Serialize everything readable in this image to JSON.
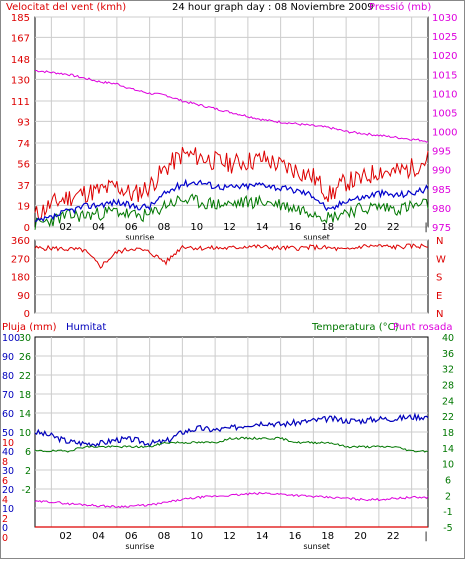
{
  "header": {
    "left_title": "Velocitat del vent (kmh)",
    "center_title": "24 hour graph day : 08 Noviembre 2009",
    "right_title": "Pressió (mb)"
  },
  "colors": {
    "wind_avg": "#0000cc",
    "wind_gust": "#dd0000",
    "wind_other": "#007700",
    "pressure": "#dd00dd",
    "direction": "#dd0000",
    "humidity": "#0000bb",
    "temperature": "#007700",
    "dewpoint": "#dd00dd",
    "rain": "#dd0000",
    "grid": "#cccccc",
    "frame": "#000000"
  },
  "time_axis": {
    "ticks": [
      "02",
      "04",
      "06",
      "08",
      "10",
      "12",
      "14",
      "16",
      "18",
      "20",
      "22",
      "|"
    ],
    "sunrise_label": "sunrise",
    "sunset_label": "sunset"
  },
  "chart_data": [
    {
      "type": "line",
      "title": "24 hour graph day : 08 Noviembre 2009",
      "ylabel_left": "Velocitat del vent (kmh)",
      "ylabel_right": "Pressió (mb)",
      "y_left_ticks": [
        "185",
        "167",
        "148",
        "130",
        "111",
        "93",
        "74",
        "56",
        "37",
        "19",
        "0"
      ],
      "y_right_ticks": [
        "1030",
        "1025",
        "1020",
        "1015",
        "1010",
        "1005",
        "1000",
        "995",
        "990",
        "985",
        "980",
        "975"
      ],
      "ylim_left": [
        0,
        185
      ],
      "ylim_right": [
        975,
        1030
      ],
      "x_hours": [
        0,
        1,
        2,
        3,
        4,
        5,
        6,
        7,
        8,
        9,
        10,
        11,
        12,
        13,
        14,
        15,
        16,
        17,
        18,
        19,
        20,
        21,
        22,
        23,
        24
      ],
      "series": [
        {
          "values": [
            10,
            20,
            26,
            30,
            32,
            36,
            28,
            36,
            52,
            64,
            62,
            58,
            56,
            58,
            60,
            54,
            50,
            44,
            28,
            40,
            42,
            50,
            48,
            52,
            60
          ]
        },
        {
          "values": [
            4,
            8,
            14,
            18,
            20,
            22,
            18,
            18,
            30,
            38,
            40,
            36,
            35,
            36,
            38,
            34,
            32,
            28,
            14,
            24,
            26,
            30,
            28,
            30,
            34
          ]
        },
        {
          "values": [
            2,
            6,
            10,
            10,
            12,
            14,
            10,
            10,
            20,
            24,
            22,
            20,
            20,
            22,
            22,
            20,
            16,
            14,
            8,
            14,
            16,
            18,
            16,
            18,
            20
          ]
        },
        {
          "values": [
            1016,
            1015.5,
            1015,
            1014,
            1013,
            1012.5,
            1011,
            1010,
            1009.5,
            1008,
            1007,
            1006,
            1005,
            1004,
            1003,
            1002.5,
            1002,
            1001.5,
            1001,
            1000,
            999.5,
            999,
            998.5,
            998,
            997.5
          ]
        }
      ]
    },
    {
      "type": "line",
      "y_left_ticks": [
        "360",
        "270",
        "180",
        "90",
        "0"
      ],
      "y_right_ticks": [
        "N",
        "W",
        "S",
        "E",
        "N"
      ],
      "ylim": [
        0,
        360
      ],
      "x_hours": [
        0,
        1,
        2,
        3,
        4,
        5,
        6,
        7,
        8,
        9,
        10,
        11,
        12,
        13,
        14,
        15,
        16,
        17,
        18,
        19,
        20,
        21,
        22,
        23,
        24
      ],
      "series": [
        {
          "values": [
            320,
            320,
            315,
            310,
            230,
            300,
            320,
            300,
            250,
            330,
            320,
            320,
            320,
            330,
            325,
            320,
            320,
            325,
            320,
            310,
            330,
            330,
            325,
            330,
            330
          ]
        }
      ]
    },
    {
      "type": "line",
      "label_rain": "Pluja (mm)",
      "label_humidity": "Humitat",
      "label_temperature": "Temperatura (°C)",
      "label_dewpoint": "Punt rosada",
      "y_rain_ticks": [
        "10",
        "8",
        "6",
        "4",
        "2",
        "0"
      ],
      "y_hum_ticks": [
        "100",
        "90",
        "80",
        "70",
        "60",
        "50",
        "40",
        "30",
        "20",
        "10",
        "0"
      ],
      "y_temp_ticks": [
        "30",
        "26",
        "22",
        "18",
        "14",
        "10",
        "6",
        "2",
        "-2"
      ],
      "y_temp_right_ticks": [
        "40",
        "36",
        "32",
        "28",
        "24",
        "22",
        "18",
        "14",
        "10",
        "6",
        "2",
        "-1",
        "-5"
      ],
      "hum_ylim": [
        0,
        100
      ],
      "temp_ylim": [
        -5,
        40
      ],
      "x_hours": [
        0,
        1,
        2,
        3,
        4,
        5,
        6,
        7,
        8,
        9,
        10,
        11,
        12,
        13,
        14,
        15,
        16,
        17,
        18,
        19,
        20,
        21,
        22,
        23,
        24
      ],
      "series": [
        {
          "values": [
            50,
            48,
            45,
            44,
            44,
            46,
            46,
            44,
            45,
            50,
            52,
            51,
            52,
            54,
            55,
            54,
            55,
            56,
            57,
            56,
            56,
            57,
            57,
            58,
            58
          ]
        },
        {
          "values": [
            13,
            13,
            13,
            14,
            14,
            14,
            14,
            14,
            15,
            15,
            15,
            15,
            16,
            16,
            16,
            16,
            15,
            15,
            15,
            14,
            14,
            14,
            14,
            13,
            13
          ]
        },
        {
          "values": [
            1,
            1,
            0.5,
            0.3,
            0,
            -0.2,
            0,
            0.2,
            0.8,
            1.5,
            2,
            2.3,
            2.5,
            2.8,
            3,
            2.8,
            2.5,
            2.2,
            2,
            1.8,
            1.5,
            1.5,
            1.8,
            2,
            2
          ]
        },
        {
          "values": [
            0,
            0,
            0,
            0,
            0,
            0,
            0,
            0,
            0,
            0,
            0,
            0,
            0,
            0,
            0,
            0,
            0,
            0,
            0,
            0,
            0,
            0,
            0,
            0,
            0
          ]
        }
      ]
    }
  ]
}
